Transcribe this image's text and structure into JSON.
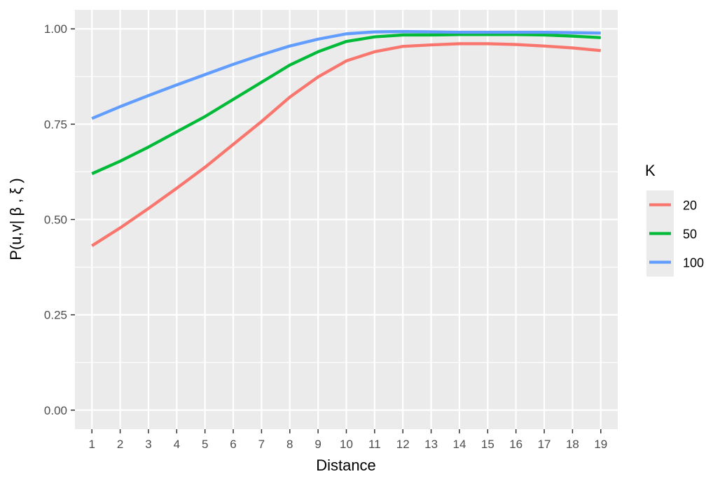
{
  "chart_data": {
    "type": "line",
    "xlabel": "Distance",
    "ylabel": "P(u,v| β , ξ )",
    "x": [
      1,
      2,
      3,
      4,
      5,
      6,
      7,
      8,
      9,
      10,
      11,
      12,
      13,
      14,
      15,
      16,
      17,
      18,
      19
    ],
    "xlim": [
      0.4,
      19.6
    ],
    "ylim": [
      -0.05,
      1.05
    ],
    "yticks": [
      0.0,
      0.25,
      0.5,
      0.75,
      1.0
    ],
    "ytick_labels": [
      "0.00",
      "0.25",
      "0.50",
      "0.75",
      "1.00"
    ],
    "xtick_labels": [
      "1",
      "2",
      "3",
      "4",
      "5",
      "6",
      "7",
      "8",
      "9",
      "10",
      "11",
      "12",
      "13",
      "14",
      "15",
      "16",
      "17",
      "18",
      "19"
    ],
    "grid": true,
    "background": "#ebebeb",
    "legend": {
      "title": "K",
      "placement": "right"
    },
    "series": [
      {
        "name": "20",
        "color": "#f8766d",
        "values": [
          0.431,
          0.478,
          0.529,
          0.582,
          0.637,
          0.697,
          0.757,
          0.821,
          0.874,
          0.916,
          0.94,
          0.954,
          0.958,
          0.961,
          0.961,
          0.959,
          0.955,
          0.95,
          0.943
        ]
      },
      {
        "name": "50",
        "color": "#00ba38",
        "values": [
          0.62,
          0.653,
          0.69,
          0.73,
          0.77,
          0.815,
          0.86,
          0.905,
          0.94,
          0.967,
          0.979,
          0.984,
          0.984,
          0.985,
          0.985,
          0.985,
          0.984,
          0.981,
          0.977
        ]
      },
      {
        "name": "100",
        "color": "#619cff",
        "values": [
          0.765,
          0.796,
          0.825,
          0.853,
          0.88,
          0.907,
          0.932,
          0.955,
          0.973,
          0.987,
          0.992,
          0.993,
          0.992,
          0.991,
          0.991,
          0.991,
          0.991,
          0.99,
          0.989
        ]
      }
    ]
  }
}
